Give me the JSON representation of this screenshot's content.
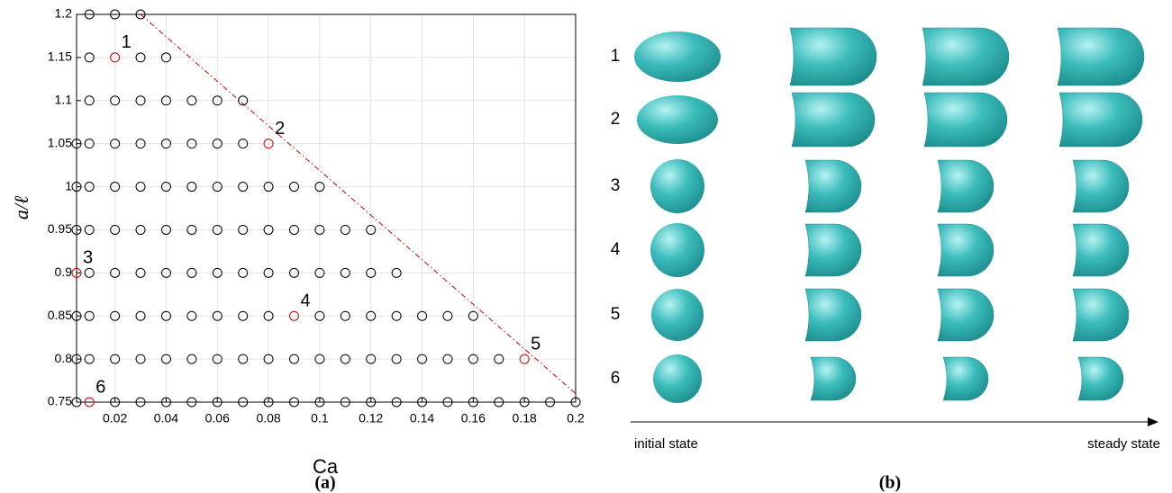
{
  "chart_data": {
    "type": "scatter",
    "x_label": "Ca",
    "y_label": "a/ℓ",
    "caption": "(a)",
    "xlim": [
      0.005,
      0.2
    ],
    "ylim": [
      0.75,
      1.2
    ],
    "xticks": [
      0.02,
      0.04,
      0.06,
      0.08,
      0.1,
      0.12,
      0.14,
      0.16,
      0.18,
      0.2
    ],
    "yticks": [
      0.75,
      0.8,
      0.85,
      0.9,
      0.95,
      1,
      1.05,
      1.1,
      1.15,
      1.2
    ],
    "grid": true,
    "series": [
      {
        "color": "#000000",
        "x": [
          0.01,
          0.02,
          0.03,
          0.01,
          0.03,
          0.04,
          0.01,
          0.02,
          0.03,
          0.04,
          0.05,
          0.06,
          0.07,
          0.005,
          0.01,
          0.02,
          0.03,
          0.04,
          0.05,
          0.06,
          0.07,
          0.005,
          0.01,
          0.02,
          0.03,
          0.04,
          0.05,
          0.06,
          0.07,
          0.08,
          0.09,
          0.1,
          0.005,
          0.01,
          0.02,
          0.03,
          0.04,
          0.05,
          0.06,
          0.07,
          0.08,
          0.09,
          0.1,
          0.11,
          0.12,
          0.01,
          0.02,
          0.03,
          0.04,
          0.05,
          0.06,
          0.07,
          0.08,
          0.09,
          0.1,
          0.11,
          0.12,
          0.13,
          0.005,
          0.01,
          0.02,
          0.03,
          0.04,
          0.05,
          0.06,
          0.07,
          0.08,
          0.1,
          0.11,
          0.12,
          0.13,
          0.14,
          0.15,
          0.16,
          0.005,
          0.01,
          0.02,
          0.03,
          0.04,
          0.05,
          0.06,
          0.07,
          0.08,
          0.09,
          0.1,
          0.11,
          0.12,
          0.13,
          0.14,
          0.15,
          0.16,
          0.17,
          0.005,
          0.02,
          0.03,
          0.04,
          0.05,
          0.06,
          0.07,
          0.08,
          0.09,
          0.1,
          0.11,
          0.12,
          0.13,
          0.14,
          0.15,
          0.16,
          0.17,
          0.18,
          0.19,
          0.2
        ],
        "values": [
          1.2,
          1.2,
          1.2,
          1.15,
          1.15,
          1.15,
          1.1,
          1.1,
          1.1,
          1.1,
          1.1,
          1.1,
          1.1,
          1.05,
          1.05,
          1.05,
          1.05,
          1.05,
          1.05,
          1.05,
          1.05,
          1,
          1,
          1,
          1,
          1,
          1,
          1,
          1,
          1,
          1,
          1,
          0.95,
          0.95,
          0.95,
          0.95,
          0.95,
          0.95,
          0.95,
          0.95,
          0.95,
          0.95,
          0.95,
          0.95,
          0.95,
          0.9,
          0.9,
          0.9,
          0.9,
          0.9,
          0.9,
          0.9,
          0.9,
          0.9,
          0.9,
          0.9,
          0.9,
          0.9,
          0.85,
          0.85,
          0.85,
          0.85,
          0.85,
          0.85,
          0.85,
          0.85,
          0.85,
          0.85,
          0.85,
          0.85,
          0.85,
          0.85,
          0.85,
          0.85,
          0.8,
          0.8,
          0.8,
          0.8,
          0.8,
          0.8,
          0.8,
          0.8,
          0.8,
          0.8,
          0.8,
          0.8,
          0.8,
          0.8,
          0.8,
          0.8,
          0.8,
          0.8,
          0.75,
          0.75,
          0.75,
          0.75,
          0.75,
          0.75,
          0.75,
          0.75,
          0.75,
          0.75,
          0.75,
          0.75,
          0.75,
          0.75,
          0.75,
          0.75,
          0.75,
          0.75,
          0.75,
          0.75
        ]
      },
      {
        "color": "#d00000",
        "x": [
          0.02,
          0.08,
          0.005,
          0.09,
          0.18,
          0.01
        ],
        "values": [
          1.15,
          1.05,
          0.9,
          0.85,
          0.8,
          0.75
        ],
        "labels": [
          "1",
          "2",
          "3",
          "4",
          "5",
          "6"
        ]
      }
    ],
    "reference_line": {
      "color": "#d00000",
      "x": [
        0.03,
        0.2
      ],
      "values": [
        1.2,
        0.76
      ]
    }
  },
  "panel_b": {
    "row_labels": [
      "1",
      "2",
      "3",
      "4",
      "5",
      "6"
    ],
    "start_label": "initial state",
    "end_label": "steady state",
    "caption": "(b)"
  }
}
